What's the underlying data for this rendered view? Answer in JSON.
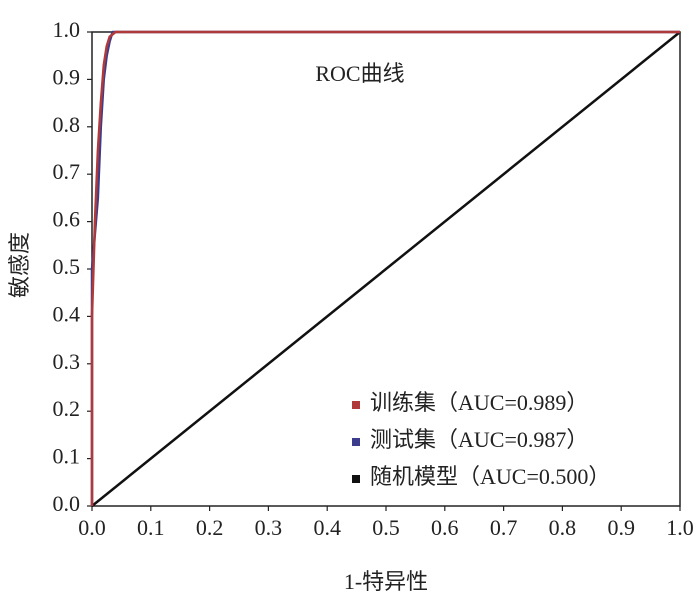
{
  "chart_data": {
    "type": "line",
    "title": "ROC曲线",
    "xlabel": "1-特异性",
    "ylabel": "敏感度",
    "xlim": [
      0,
      1
    ],
    "ylim": [
      0,
      1
    ],
    "xticks": [
      {
        "value": 0,
        "label": "0.0"
      },
      {
        "value": 0.1,
        "label": "0.1"
      },
      {
        "value": 0.2,
        "label": "0.2"
      },
      {
        "value": 0.3,
        "label": "0.3"
      },
      {
        "value": 0.4,
        "label": "0.4"
      },
      {
        "value": 0.5,
        "label": "0.5"
      },
      {
        "value": 0.6,
        "label": "0.6"
      },
      {
        "value": 0.7,
        "label": "0.7"
      },
      {
        "value": 0.8,
        "label": "0.8"
      },
      {
        "value": 0.9,
        "label": "0.9"
      },
      {
        "value": 1,
        "label": "1.0"
      }
    ],
    "yticks": [
      {
        "value": 0,
        "label": "0.0"
      },
      {
        "value": 0.1,
        "label": "0.1"
      },
      {
        "value": 0.2,
        "label": "0.2"
      },
      {
        "value": 0.3,
        "label": "0.3"
      },
      {
        "value": 0.4,
        "label": "0.4"
      },
      {
        "value": 0.5,
        "label": "0.5"
      },
      {
        "value": 0.6,
        "label": "0.6"
      },
      {
        "value": 0.7,
        "label": "0.7"
      },
      {
        "value": 0.8,
        "label": "0.8"
      },
      {
        "value": 0.9,
        "label": "0.9"
      },
      {
        "value": 1,
        "label": "1.0"
      }
    ],
    "legend": "lower right",
    "series": [
      {
        "name": "训练集（AUC=0.989）",
        "color": "#b03a3a",
        "x": [
          0,
          0,
          0.005,
          0.01,
          0.015,
          0.02,
          0.025,
          0.03,
          0.04,
          0.05,
          1
        ],
        "values": [
          0,
          0.4,
          0.6,
          0.75,
          0.85,
          0.93,
          0.97,
          0.99,
          1,
          1,
          1
        ]
      },
      {
        "name": "测试集（AUC=0.987）",
        "color": "#3c3c8c",
        "x": [
          0,
          0,
          0.01,
          0.015,
          0.02,
          0.025,
          0.03,
          0.035,
          0.04,
          1
        ],
        "values": [
          0,
          0.5,
          0.65,
          0.8,
          0.9,
          0.95,
          0.98,
          1,
          1,
          1
        ]
      },
      {
        "name": "随机模型（AUC=0.500）",
        "color": "#111111",
        "x": [
          0,
          1
        ],
        "values": [
          0,
          1
        ]
      }
    ]
  }
}
